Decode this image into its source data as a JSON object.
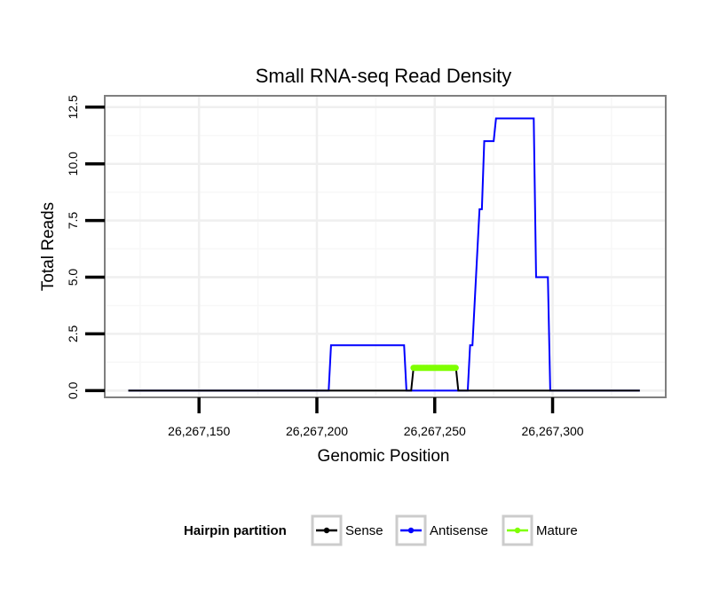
{
  "chart_data": {
    "type": "line",
    "title": "Small RNA-seq Read Density",
    "xlabel": "Genomic Position",
    "ylabel": "Total Reads",
    "xlim": [
      26267110,
      26267348
    ],
    "ylim": [
      -0.3,
      13
    ],
    "x_ticks": [
      26267150,
      26267200,
      26267250,
      26267300
    ],
    "x_tick_labels": [
      "26,267,150",
      "26,267,200",
      "26,267,250",
      "26,267,300"
    ],
    "y_ticks": [
      0,
      2.5,
      5,
      7.5,
      10,
      12.5
    ],
    "y_tick_labels": [
      "0.0",
      "2.5",
      "5.0",
      "7.5",
      "10.0",
      "12.5"
    ],
    "grid": true,
    "legend": {
      "title": "Hairpin partition",
      "position": "bottom"
    },
    "series": [
      {
        "name": "Sense",
        "color": "#000000",
        "x": [
          26267120,
          26267240,
          26267241,
          26267259,
          26267260,
          26267337
        ],
        "y": [
          0,
          0,
          1,
          1,
          0,
          0
        ]
      },
      {
        "name": "Antisense",
        "color": "#0000ff",
        "x": [
          26267120,
          26267205,
          26267206,
          26267237,
          26267238,
          26267264,
          26267265,
          26267266,
          26267268,
          26267269,
          26267270,
          26267271,
          26267275,
          26267276,
          26267292,
          26267293,
          26267298,
          26267299,
          26267337
        ],
        "y": [
          0,
          0,
          2,
          2,
          0,
          0,
          2,
          2,
          6,
          8,
          8,
          11,
          11,
          12,
          12,
          5,
          5,
          0,
          0
        ]
      },
      {
        "name": "Mature",
        "color": "#7fff00",
        "x": [
          26267241,
          26267259
        ],
        "y": [
          1,
          1
        ]
      }
    ]
  }
}
